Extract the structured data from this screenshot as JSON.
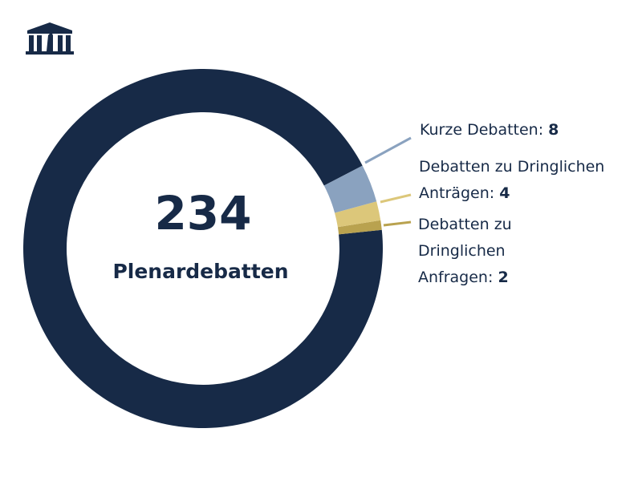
{
  "chart_data": {
    "type": "donut",
    "center_value": "234",
    "center_label": "Plenardebatten",
    "categories": [
      "Kurze Debatten:",
      "Debatten zu Dringlichen Anträgen:",
      "Debatten zu Dringlichen Anfragen:",
      null
    ],
    "values": [
      8,
      4,
      2,
      220
    ],
    "colors": [
      "#8aa2bf",
      "#dcc77a",
      "#b9a24f",
      "#172a47"
    ]
  }
}
